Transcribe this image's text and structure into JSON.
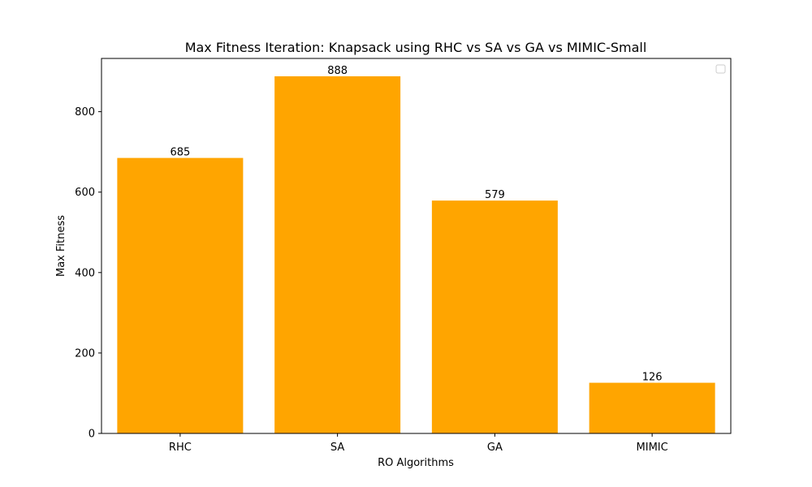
{
  "chart_data": {
    "type": "bar",
    "title": "Max Fitness Iteration: Knapsack using RHC vs SA vs GA vs MIMIC-Small",
    "xlabel": "RO Algorithms",
    "ylabel": "Max Fitness",
    "categories": [
      "RHC",
      "SA",
      "GA",
      "MIMIC"
    ],
    "values": [
      685,
      888,
      579,
      126
    ],
    "data_labels": [
      "685",
      "888",
      "579",
      "126"
    ],
    "ylim": [
      0,
      932.4
    ],
    "yticks": [
      0,
      200,
      400,
      600,
      800
    ],
    "ytick_labels": [
      "0",
      "200",
      "400",
      "600",
      "800"
    ],
    "bar_color": "#ffa500",
    "grid": false,
    "legend": {
      "placement": "top-right",
      "entries": []
    }
  }
}
